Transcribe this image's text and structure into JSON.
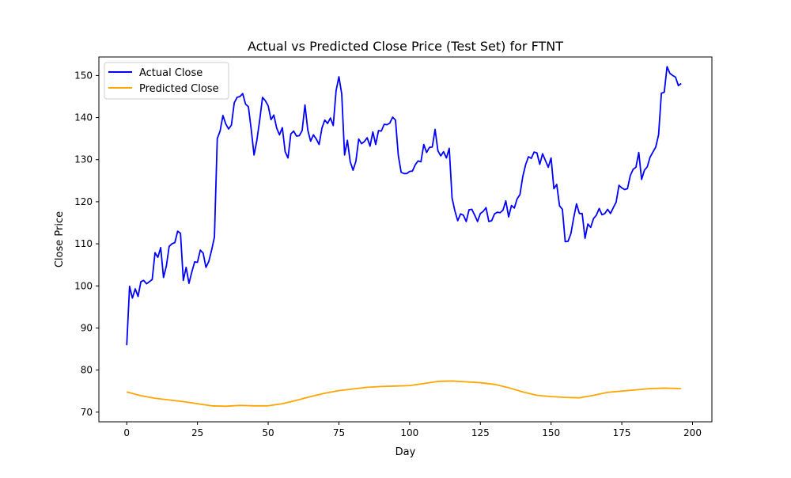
{
  "chart_data": {
    "type": "line",
    "title": "Actual vs Predicted Close Price (Test Set) for FTNT",
    "xlabel": "Day",
    "ylabel": "Close Price",
    "xlim": [
      -9.85,
      206.85
    ],
    "ylim": [
      67.7,
      154.4
    ],
    "xticks": [
      0,
      25,
      50,
      75,
      100,
      125,
      150,
      175,
      200
    ],
    "yticks": [
      70,
      80,
      90,
      100,
      110,
      120,
      130,
      140,
      150
    ],
    "grid": false,
    "legend_position": "top-left",
    "series": [
      {
        "name": "Actual Close",
        "color": "#0000ff",
        "x": [
          0,
          1,
          2,
          3,
          4,
          5,
          6,
          7,
          8,
          9,
          10,
          11,
          12,
          13,
          14,
          15,
          16,
          17,
          18,
          19,
          20,
          21,
          22,
          23,
          24,
          25,
          26,
          27,
          28,
          29,
          30,
          31,
          32,
          33,
          34,
          35,
          36,
          37,
          38,
          39,
          40,
          41,
          42,
          43,
          44,
          45,
          46,
          47,
          48,
          49,
          50,
          51,
          52,
          53,
          54,
          55,
          56,
          57,
          58,
          59,
          60,
          61,
          62,
          63,
          64,
          65,
          66,
          67,
          68,
          69,
          70,
          71,
          72,
          73,
          74,
          75,
          76,
          77,
          78,
          79,
          80,
          81,
          82,
          83,
          84,
          85,
          86,
          87,
          88,
          89,
          90,
          91,
          92,
          93,
          94,
          95,
          96,
          97,
          98,
          99,
          100,
          101,
          102,
          103,
          104,
          105,
          106,
          107,
          108,
          109,
          110,
          111,
          112,
          113,
          114,
          115,
          116,
          117,
          118,
          119,
          120,
          121,
          122,
          123,
          124,
          125,
          126,
          127,
          128,
          129,
          130,
          131,
          132,
          133,
          134,
          135,
          136,
          137,
          138,
          139,
          140,
          141,
          142,
          143,
          144,
          145,
          146,
          147,
          148,
          149,
          150,
          151,
          152,
          153,
          154,
          155,
          156,
          157,
          158,
          159,
          160,
          161,
          162,
          163,
          164,
          165,
          166,
          167,
          168,
          169,
          170,
          171,
          172,
          173,
          174,
          175,
          176,
          177,
          178,
          179,
          180,
          181,
          182,
          183,
          184,
          185,
          186,
          187,
          188,
          189,
          190,
          191,
          192,
          193,
          194,
          195,
          196
        ],
        "values": [
          85.9,
          99.9,
          97.1,
          99.3,
          97.5,
          101.0,
          101.3,
          100.5,
          101.0,
          101.5,
          107.9,
          106.8,
          109.1,
          102.0,
          104.7,
          109.4,
          110.0,
          110.3,
          113.0,
          112.5,
          101.3,
          104.4,
          100.6,
          103.3,
          105.7,
          105.6,
          108.5,
          107.8,
          104.4,
          105.8,
          108.5,
          111.6,
          135.0,
          136.8,
          140.5,
          138.5,
          137.3,
          138.2,
          143.5,
          144.8,
          145.0,
          145.7,
          143.2,
          142.6,
          137.2,
          131.1,
          134.6,
          139.4,
          144.8,
          144.0,
          142.8,
          139.5,
          140.6,
          137.5,
          135.9,
          137.6,
          131.9,
          130.4,
          136.1,
          136.8,
          135.6,
          135.7,
          136.9,
          143.0,
          137.0,
          134.4,
          135.9,
          134.9,
          133.6,
          137.5,
          139.4,
          138.6,
          139.9,
          138.1,
          146.4,
          149.7,
          145.6,
          131.1,
          134.6,
          129.5,
          127.5,
          129.6,
          134.9,
          133.8,
          134.3,
          135.2,
          133.2,
          136.6,
          133.6,
          136.9,
          136.8,
          138.4,
          138.3,
          138.7,
          140.1,
          139.4,
          131.0,
          127.0,
          126.7,
          126.7,
          127.2,
          127.3,
          128.8,
          129.7,
          129.5,
          133.6,
          131.7,
          132.9,
          133.0,
          137.2,
          132.1,
          130.9,
          131.9,
          130.4,
          132.7,
          120.9,
          117.8,
          115.5,
          117.1,
          116.8,
          115.3,
          118.1,
          118.2,
          116.8,
          115.3,
          117.2,
          117.7,
          118.6,
          115.3,
          115.5,
          117.1,
          117.5,
          117.4,
          118.0,
          120.2,
          116.4,
          119.1,
          118.5,
          120.7,
          121.7,
          126.0,
          128.8,
          130.7,
          130.3,
          131.8,
          131.6,
          128.9,
          131.4,
          129.8,
          128.2,
          130.4,
          123.1,
          124.1,
          119.0,
          118.2,
          110.5,
          110.6,
          112.4,
          116.2,
          119.5,
          117.2,
          117.2,
          111.3,
          114.7,
          113.9,
          116.0,
          116.8,
          118.4,
          116.9,
          117.2,
          118.2,
          117.2,
          118.6,
          119.9,
          123.9,
          123.3,
          122.9,
          123.1,
          126.2,
          127.7,
          128.2,
          131.7,
          125.3,
          127.5,
          128.3,
          130.6,
          131.8,
          133.0,
          135.9,
          145.8,
          146.0,
          152.1,
          150.5,
          150.0,
          149.6,
          147.6,
          148.1
        ]
      },
      {
        "name": "Predicted Close",
        "color": "#ffa500",
        "x": [
          0,
          5,
          10,
          15,
          20,
          25,
          30,
          35,
          40,
          45,
          50,
          55,
          60,
          65,
          70,
          75,
          80,
          85,
          90,
          95,
          100,
          105,
          110,
          115,
          120,
          125,
          130,
          135,
          140,
          145,
          150,
          155,
          160,
          165,
          170,
          175,
          180,
          185,
          190,
          196
        ],
        "values": [
          74.8,
          73.9,
          73.3,
          72.9,
          72.5,
          72.0,
          71.5,
          71.4,
          71.6,
          71.5,
          71.5,
          72.0,
          72.8,
          73.7,
          74.5,
          75.1,
          75.5,
          75.9,
          76.1,
          76.2,
          76.3,
          76.8,
          77.3,
          77.4,
          77.2,
          77.0,
          76.6,
          75.8,
          74.8,
          74.0,
          73.7,
          73.5,
          73.4,
          74.0,
          74.7,
          75.0,
          75.3,
          75.6,
          75.7,
          75.6
        ]
      }
    ]
  }
}
